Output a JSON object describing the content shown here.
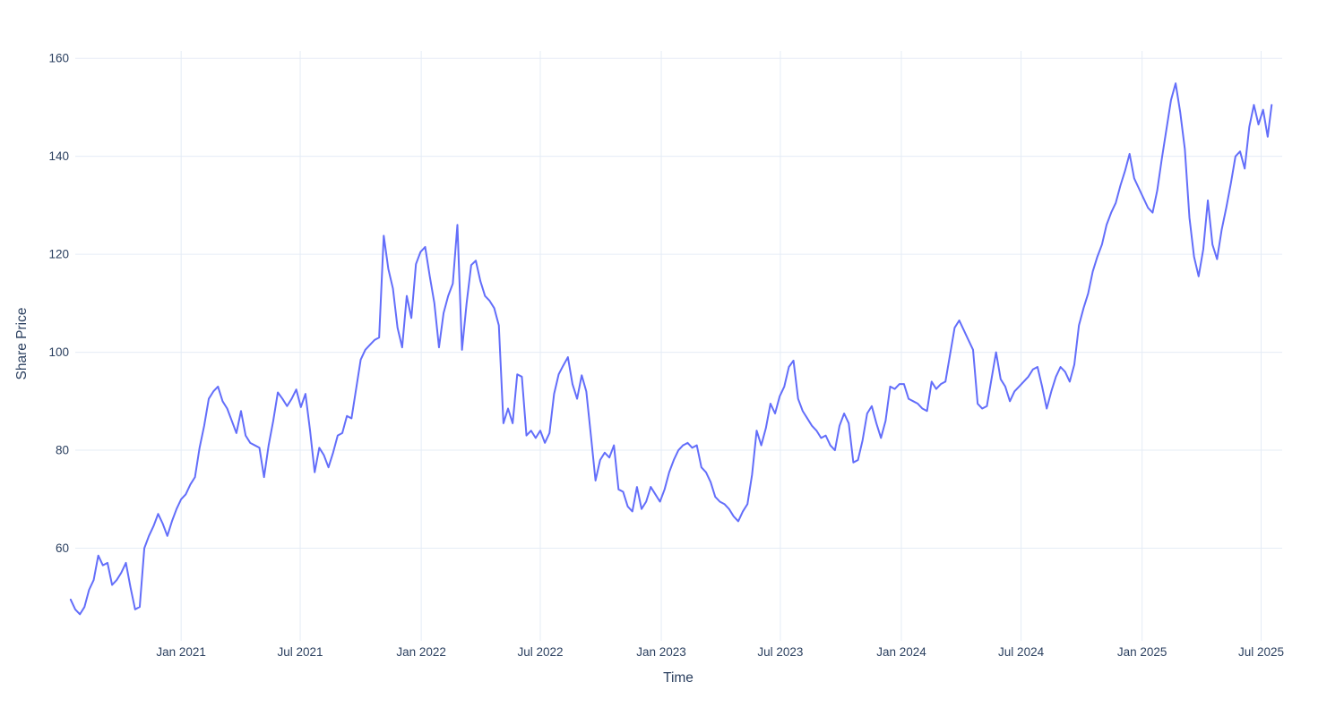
{
  "chart_data": {
    "type": "line",
    "title": "",
    "xlabel": "Time",
    "ylabel": "Share Price",
    "legend": false,
    "grid": true,
    "x_ticks": [
      {
        "date": "2021-01-01",
        "label": "Jan 2021"
      },
      {
        "date": "2021-07-01",
        "label": "Jul 2021"
      },
      {
        "date": "2022-01-01",
        "label": "Jan 2022"
      },
      {
        "date": "2022-07-01",
        "label": "Jul 2022"
      },
      {
        "date": "2023-01-01",
        "label": "Jan 2023"
      },
      {
        "date": "2023-07-01",
        "label": "Jul 2023"
      },
      {
        "date": "2024-01-01",
        "label": "Jan 2024"
      },
      {
        "date": "2024-07-01",
        "label": "Jul 2024"
      },
      {
        "date": "2025-01-01",
        "label": "Jan 2025"
      },
      {
        "date": "2025-07-01",
        "label": "Jul 2025"
      }
    ],
    "y_ticks": [
      60,
      80,
      100,
      120,
      140,
      160
    ],
    "xlim": [
      "2020-07-24",
      "2025-08-02"
    ],
    "ylim": [
      42,
      161.5
    ],
    "colors": {
      "line": "#636EFA",
      "grid": "#E5ECF6",
      "text": "#2a3f5f",
      "background": "#ffffff"
    },
    "series": [
      {
        "name": "Share Price",
        "points": [
          [
            "2020-07-17",
            49.5
          ],
          [
            "2020-07-24",
            47.5
          ],
          [
            "2020-07-31",
            46.5
          ],
          [
            "2020-08-07",
            48.0
          ],
          [
            "2020-08-14",
            51.5
          ],
          [
            "2020-08-21",
            53.5
          ],
          [
            "2020-08-28",
            58.5
          ],
          [
            "2020-09-04",
            56.5
          ],
          [
            "2020-09-11",
            57.0
          ],
          [
            "2020-09-18",
            52.5
          ],
          [
            "2020-09-25",
            53.5
          ],
          [
            "2020-10-02",
            55.0
          ],
          [
            "2020-10-09",
            57.0
          ],
          [
            "2020-10-16",
            52.0
          ],
          [
            "2020-10-23",
            47.5
          ],
          [
            "2020-10-30",
            48.0
          ],
          [
            "2020-11-06",
            60.0
          ],
          [
            "2020-11-13",
            62.5
          ],
          [
            "2020-11-20",
            64.5
          ],
          [
            "2020-11-27",
            67.0
          ],
          [
            "2020-12-04",
            65.0
          ],
          [
            "2020-12-11",
            62.5
          ],
          [
            "2020-12-18",
            65.5
          ],
          [
            "2020-12-25",
            68.0
          ],
          [
            "2021-01-01",
            70.0
          ],
          [
            "2021-01-08",
            71.0
          ],
          [
            "2021-01-15",
            73.0
          ],
          [
            "2021-01-22",
            74.5
          ],
          [
            "2021-01-29",
            80.5
          ],
          [
            "2021-02-05",
            85.0
          ],
          [
            "2021-02-12",
            90.5
          ],
          [
            "2021-02-19",
            92.0
          ],
          [
            "2021-02-26",
            93.0
          ],
          [
            "2021-03-05",
            90.0
          ],
          [
            "2021-03-12",
            88.5
          ],
          [
            "2021-03-19",
            86.0
          ],
          [
            "2021-03-26",
            83.5
          ],
          [
            "2021-04-02",
            88.0
          ],
          [
            "2021-04-09",
            83.0
          ],
          [
            "2021-04-16",
            81.5
          ],
          [
            "2021-04-23",
            81.0
          ],
          [
            "2021-04-30",
            80.5
          ],
          [
            "2021-05-07",
            74.5
          ],
          [
            "2021-05-14",
            81.0
          ],
          [
            "2021-05-21",
            86.0
          ],
          [
            "2021-05-28",
            91.8
          ],
          [
            "2021-06-04",
            90.5
          ],
          [
            "2021-06-11",
            89.0
          ],
          [
            "2021-06-18",
            90.5
          ],
          [
            "2021-06-25",
            92.4
          ],
          [
            "2021-07-02",
            88.8
          ],
          [
            "2021-07-09",
            91.5
          ],
          [
            "2021-07-16",
            84.0
          ],
          [
            "2021-07-23",
            75.5
          ],
          [
            "2021-07-30",
            80.5
          ],
          [
            "2021-08-06",
            79.0
          ],
          [
            "2021-08-13",
            76.5
          ],
          [
            "2021-08-20",
            79.5
          ],
          [
            "2021-08-27",
            83.0
          ],
          [
            "2021-09-03",
            83.5
          ],
          [
            "2021-09-10",
            87.0
          ],
          [
            "2021-09-17",
            86.5
          ],
          [
            "2021-09-24",
            92.5
          ],
          [
            "2021-10-01",
            98.5
          ],
          [
            "2021-10-08",
            100.5
          ],
          [
            "2021-10-15",
            101.5
          ],
          [
            "2021-10-22",
            102.5
          ],
          [
            "2021-10-29",
            103.0
          ],
          [
            "2021-11-05",
            123.8
          ],
          [
            "2021-11-12",
            117.0
          ],
          [
            "2021-11-19",
            113.0
          ],
          [
            "2021-11-26",
            105.0
          ],
          [
            "2021-12-03",
            101.0
          ],
          [
            "2021-12-10",
            111.5
          ],
          [
            "2021-12-17",
            107.0
          ],
          [
            "2021-12-24",
            118.0
          ],
          [
            "2021-12-31",
            120.5
          ],
          [
            "2022-01-07",
            121.5
          ],
          [
            "2022-01-14",
            115.5
          ],
          [
            "2022-01-21",
            110.0
          ],
          [
            "2022-01-28",
            101.0
          ],
          [
            "2022-02-04",
            108.0
          ],
          [
            "2022-02-11",
            111.5
          ],
          [
            "2022-02-18",
            114.0
          ],
          [
            "2022-02-25",
            126.0
          ],
          [
            "2022-03-04",
            100.5
          ],
          [
            "2022-03-11",
            110.0
          ],
          [
            "2022-03-18",
            117.8
          ],
          [
            "2022-03-25",
            118.7
          ],
          [
            "2022-04-01",
            114.5
          ],
          [
            "2022-04-08",
            111.5
          ],
          [
            "2022-04-15",
            110.5
          ],
          [
            "2022-04-22",
            109.0
          ],
          [
            "2022-04-29",
            105.5
          ],
          [
            "2022-05-06",
            85.5
          ],
          [
            "2022-05-13",
            88.5
          ],
          [
            "2022-05-20",
            85.5
          ],
          [
            "2022-05-27",
            95.5
          ],
          [
            "2022-06-03",
            95.0
          ],
          [
            "2022-06-10",
            83.0
          ],
          [
            "2022-06-17",
            84.0
          ],
          [
            "2022-06-24",
            82.5
          ],
          [
            "2022-07-01",
            84.0
          ],
          [
            "2022-07-08",
            81.5
          ],
          [
            "2022-07-15",
            83.5
          ],
          [
            "2022-07-22",
            91.5
          ],
          [
            "2022-07-29",
            95.5
          ],
          [
            "2022-08-05",
            97.3
          ],
          [
            "2022-08-12",
            99.0
          ],
          [
            "2022-08-19",
            93.5
          ],
          [
            "2022-08-26",
            90.5
          ],
          [
            "2022-09-02",
            95.3
          ],
          [
            "2022-09-09",
            92.0
          ],
          [
            "2022-09-16",
            83.0
          ],
          [
            "2022-09-23",
            73.8
          ],
          [
            "2022-09-30",
            78.0
          ],
          [
            "2022-10-07",
            79.5
          ],
          [
            "2022-10-14",
            78.5
          ],
          [
            "2022-10-21",
            81.0
          ],
          [
            "2022-10-28",
            72.0
          ],
          [
            "2022-11-04",
            71.5
          ],
          [
            "2022-11-11",
            68.5
          ],
          [
            "2022-11-18",
            67.5
          ],
          [
            "2022-11-25",
            72.5
          ],
          [
            "2022-12-02",
            68.0
          ],
          [
            "2022-12-09",
            69.5
          ],
          [
            "2022-12-16",
            72.5
          ],
          [
            "2022-12-23",
            71.0
          ],
          [
            "2022-12-30",
            69.5
          ],
          [
            "2023-01-06",
            72.0
          ],
          [
            "2023-01-13",
            75.5
          ],
          [
            "2023-01-20",
            78.0
          ],
          [
            "2023-01-27",
            80.0
          ],
          [
            "2023-02-03",
            81.0
          ],
          [
            "2023-02-10",
            81.5
          ],
          [
            "2023-02-17",
            80.5
          ],
          [
            "2023-02-24",
            81.0
          ],
          [
            "2023-03-03",
            76.5
          ],
          [
            "2023-03-10",
            75.5
          ],
          [
            "2023-03-17",
            73.5
          ],
          [
            "2023-03-24",
            70.5
          ],
          [
            "2023-03-31",
            69.5
          ],
          [
            "2023-04-07",
            69.0
          ],
          [
            "2023-04-14",
            68.0
          ],
          [
            "2023-04-21",
            66.5
          ],
          [
            "2023-04-28",
            65.5
          ],
          [
            "2023-05-05",
            67.5
          ],
          [
            "2023-05-12",
            69.0
          ],
          [
            "2023-05-19",
            75.0
          ],
          [
            "2023-05-26",
            84.0
          ],
          [
            "2023-06-02",
            81.0
          ],
          [
            "2023-06-09",
            84.5
          ],
          [
            "2023-06-16",
            89.5
          ],
          [
            "2023-06-23",
            87.5
          ],
          [
            "2023-06-30",
            91.0
          ],
          [
            "2023-07-07",
            93.0
          ],
          [
            "2023-07-14",
            97.0
          ],
          [
            "2023-07-21",
            98.3
          ],
          [
            "2023-07-28",
            90.5
          ],
          [
            "2023-08-04",
            88.0
          ],
          [
            "2023-08-11",
            86.5
          ],
          [
            "2023-08-18",
            85.0
          ],
          [
            "2023-08-25",
            84.0
          ],
          [
            "2023-09-01",
            82.5
          ],
          [
            "2023-09-08",
            83.0
          ],
          [
            "2023-09-15",
            81.0
          ],
          [
            "2023-09-22",
            80.0
          ],
          [
            "2023-09-29",
            85.0
          ],
          [
            "2023-10-06",
            87.5
          ],
          [
            "2023-10-13",
            85.5
          ],
          [
            "2023-10-20",
            77.5
          ],
          [
            "2023-10-27",
            78.0
          ],
          [
            "2023-11-03",
            82.0
          ],
          [
            "2023-11-10",
            87.5
          ],
          [
            "2023-11-17",
            89.0
          ],
          [
            "2023-11-24",
            85.5
          ],
          [
            "2023-12-01",
            82.5
          ],
          [
            "2023-12-08",
            86.0
          ],
          [
            "2023-12-15",
            93.0
          ],
          [
            "2023-12-22",
            92.5
          ],
          [
            "2023-12-29",
            93.5
          ],
          [
            "2024-01-05",
            93.5
          ],
          [
            "2024-01-12",
            90.5
          ],
          [
            "2024-01-19",
            90.0
          ],
          [
            "2024-01-26",
            89.5
          ],
          [
            "2024-02-02",
            88.5
          ],
          [
            "2024-02-09",
            88.0
          ],
          [
            "2024-02-16",
            94.0
          ],
          [
            "2024-02-23",
            92.5
          ],
          [
            "2024-03-01",
            93.5
          ],
          [
            "2024-03-08",
            94.0
          ],
          [
            "2024-03-15",
            99.5
          ],
          [
            "2024-03-22",
            105.0
          ],
          [
            "2024-03-29",
            106.5
          ],
          [
            "2024-04-05",
            104.5
          ],
          [
            "2024-04-12",
            102.5
          ],
          [
            "2024-04-19",
            100.5
          ],
          [
            "2024-04-26",
            89.5
          ],
          [
            "2024-05-03",
            88.5
          ],
          [
            "2024-05-10",
            89.0
          ],
          [
            "2024-05-17",
            94.5
          ],
          [
            "2024-05-24",
            100.0
          ],
          [
            "2024-05-31",
            94.5
          ],
          [
            "2024-06-07",
            93.0
          ],
          [
            "2024-06-14",
            90.0
          ],
          [
            "2024-06-21",
            92.0
          ],
          [
            "2024-06-28",
            93.0
          ],
          [
            "2024-07-05",
            94.0
          ],
          [
            "2024-07-12",
            95.0
          ],
          [
            "2024-07-19",
            96.5
          ],
          [
            "2024-07-26",
            97.0
          ],
          [
            "2024-08-02",
            93.0
          ],
          [
            "2024-08-09",
            88.5
          ],
          [
            "2024-08-16",
            92.0
          ],
          [
            "2024-08-23",
            95.0
          ],
          [
            "2024-08-30",
            97.0
          ],
          [
            "2024-09-06",
            96.0
          ],
          [
            "2024-09-13",
            94.0
          ],
          [
            "2024-09-20",
            97.5
          ],
          [
            "2024-09-27",
            105.5
          ],
          [
            "2024-10-04",
            109.0
          ],
          [
            "2024-10-11",
            112.0
          ],
          [
            "2024-10-18",
            116.5
          ],
          [
            "2024-10-25",
            119.5
          ],
          [
            "2024-11-01",
            122.0
          ],
          [
            "2024-11-08",
            126.0
          ],
          [
            "2024-11-15",
            128.5
          ],
          [
            "2024-11-22",
            130.5
          ],
          [
            "2024-11-29",
            134.0
          ],
          [
            "2024-12-06",
            137.0
          ],
          [
            "2024-12-13",
            140.5
          ],
          [
            "2024-12-20",
            135.5
          ],
          [
            "2024-12-27",
            133.5
          ],
          [
            "2025-01-03",
            131.5
          ],
          [
            "2025-01-10",
            129.5
          ],
          [
            "2025-01-17",
            128.5
          ],
          [
            "2025-01-24",
            133.0
          ],
          [
            "2025-01-31",
            139.5
          ],
          [
            "2025-02-07",
            145.5
          ],
          [
            "2025-02-14",
            151.5
          ],
          [
            "2025-02-21",
            154.9
          ],
          [
            "2025-02-28",
            149.0
          ],
          [
            "2025-03-07",
            141.5
          ],
          [
            "2025-03-14",
            127.5
          ],
          [
            "2025-03-21",
            119.5
          ],
          [
            "2025-03-28",
            115.5
          ],
          [
            "2025-04-04",
            121.0
          ],
          [
            "2025-04-11",
            131.0
          ],
          [
            "2025-04-18",
            122.0
          ],
          [
            "2025-04-25",
            119.0
          ],
          [
            "2025-05-02",
            125.0
          ],
          [
            "2025-05-09",
            129.5
          ],
          [
            "2025-05-16",
            134.5
          ],
          [
            "2025-05-23",
            140.0
          ],
          [
            "2025-05-30",
            141.0
          ],
          [
            "2025-06-06",
            137.5
          ],
          [
            "2025-06-13",
            146.0
          ],
          [
            "2025-06-20",
            150.5
          ],
          [
            "2025-06-27",
            146.5
          ],
          [
            "2025-07-04",
            149.5
          ],
          [
            "2025-07-11",
            144.0
          ],
          [
            "2025-07-17",
            150.5
          ]
        ]
      }
    ]
  }
}
